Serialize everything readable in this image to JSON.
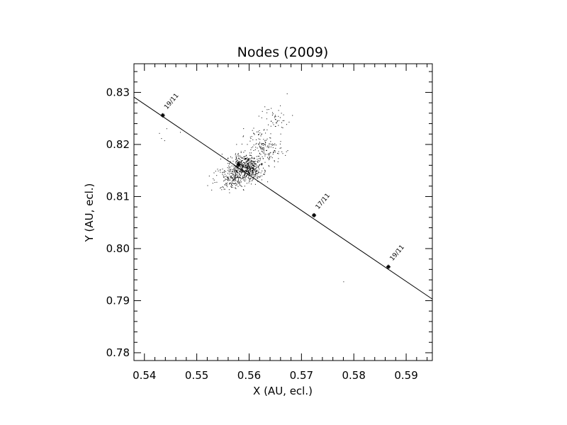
{
  "chart_data": {
    "type": "scatter",
    "title": "Nodes (2009)",
    "xlabel": "X (AU, ecl.)",
    "ylabel": "Y (AU, ecl.)",
    "xlim": [
      0.538,
      0.595
    ],
    "ylim": [
      0.7785,
      0.8355
    ],
    "xticks": [
      {
        "value": 0.54,
        "label": "0.54"
      },
      {
        "value": 0.55,
        "label": "0.55"
      },
      {
        "value": 0.56,
        "label": "0.56"
      },
      {
        "value": 0.57,
        "label": "0.57"
      },
      {
        "value": 0.58,
        "label": "0.58"
      },
      {
        "value": 0.59,
        "label": "0.59"
      }
    ],
    "yticks": [
      {
        "value": 0.78,
        "label": "0.78"
      },
      {
        "value": 0.79,
        "label": "0.79"
      },
      {
        "value": 0.8,
        "label": "0.80"
      },
      {
        "value": 0.81,
        "label": "0.81"
      },
      {
        "value": 0.82,
        "label": "0.82"
      },
      {
        "value": 0.83,
        "label": "0.83"
      }
    ],
    "grid": false,
    "line": {
      "x": [
        0.538,
        0.595
      ],
      "y": [
        0.8291,
        0.7903
      ]
    },
    "markers": [
      {
        "x": 0.5435,
        "y": 0.8256,
        "label": "19/11"
      },
      {
        "x": 0.558,
        "y": 0.8161,
        "label": ""
      },
      {
        "x": 0.5724,
        "y": 0.8064,
        "label": "17/11"
      },
      {
        "x": 0.5866,
        "y": 0.7965,
        "label": "19/11"
      }
    ],
    "outlier_points": [
      {
        "x": 0.5432,
        "y": 0.8212
      },
      {
        "x": 0.5428,
        "y": 0.8222
      },
      {
        "x": 0.5438,
        "y": 0.8208
      },
      {
        "x": 0.5442,
        "y": 0.8231
      },
      {
        "x": 0.547,
        "y": 0.823
      },
      {
        "x": 0.5468,
        "y": 0.8224
      },
      {
        "x": 0.5672,
        "y": 0.8298
      },
      {
        "x": 0.578,
        "y": 0.7937
      }
    ],
    "clusters": [
      {
        "count": 520,
        "cx": 0.5595,
        "cy": 0.8158,
        "sx": 0.0012,
        "sy": 0.0015,
        "rot_deg": -60
      },
      {
        "count": 260,
        "cx": 0.557,
        "cy": 0.8138,
        "sx": 0.0018,
        "sy": 0.0012,
        "rot_deg": -15
      },
      {
        "count": 160,
        "cx": 0.5628,
        "cy": 0.8196,
        "sx": 0.0012,
        "sy": 0.002,
        "rot_deg": -55
      },
      {
        "count": 50,
        "cx": 0.5648,
        "cy": 0.8248,
        "sx": 0.0012,
        "sy": 0.0013,
        "rot_deg": -40
      }
    ],
    "point_color": "#000000",
    "line_color": "#000000"
  }
}
